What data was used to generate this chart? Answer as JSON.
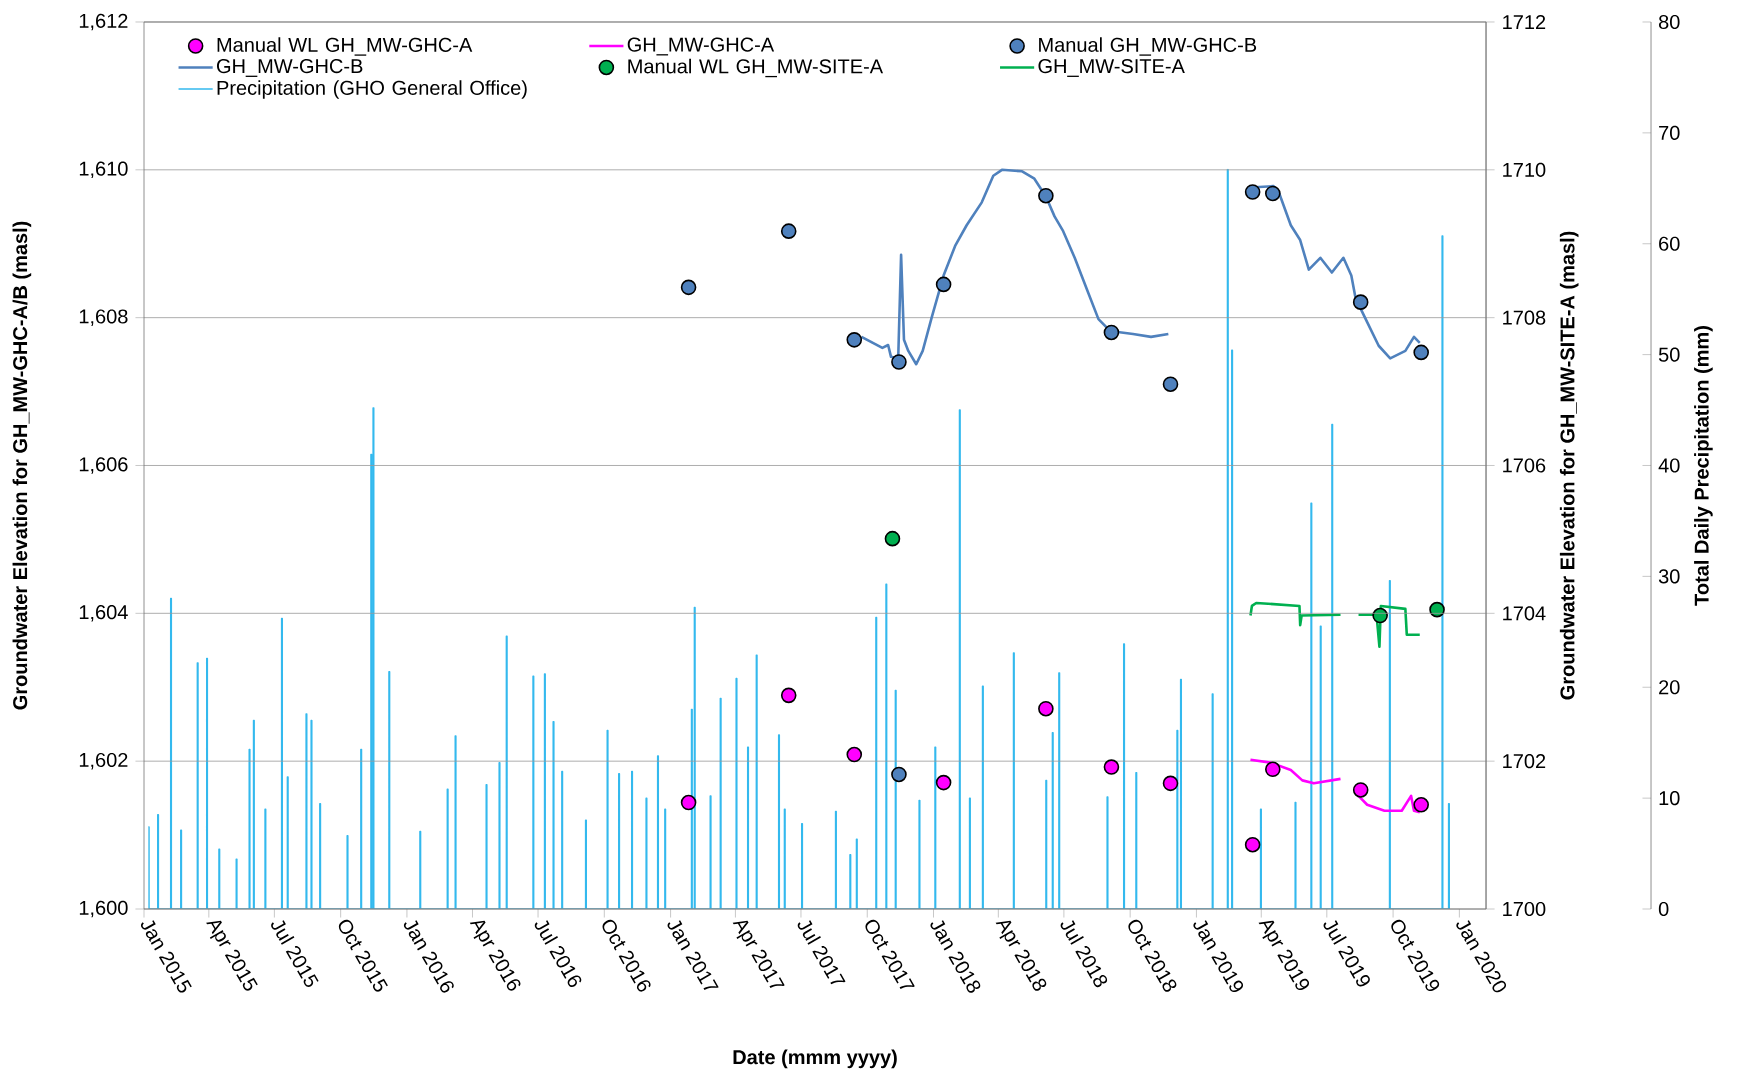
{
  "chart_data": {
    "type": "line",
    "xlabel": "Date (mmm yyyy)",
    "ylabel": "Groundwater Elevation for GH_MW-GHC-A/B (masl)",
    "y2label": "Groundwater Elevation for GH_MW-SITE-A (masl)",
    "y3label": "Total Daily Precipitation (mm)",
    "xlim": [
      "2015-01-01",
      "2020-02-07"
    ],
    "xticks": [
      {
        "value": "2015-01-01",
        "label": "Jan 2015"
      },
      {
        "value": "2015-04-01",
        "label": "Apr 2015"
      },
      {
        "value": "2015-07-01",
        "label": "Jul 2015"
      },
      {
        "value": "2015-10-01",
        "label": "Oct 2015"
      },
      {
        "value": "2016-01-01",
        "label": "Jan 2016"
      },
      {
        "value": "2016-04-01",
        "label": "Apr 2016"
      },
      {
        "value": "2016-07-01",
        "label": "Jul 2016"
      },
      {
        "value": "2016-10-01",
        "label": "Oct 2016"
      },
      {
        "value": "2017-01-01",
        "label": "Jan 2017"
      },
      {
        "value": "2017-04-01",
        "label": "Apr 2017"
      },
      {
        "value": "2017-07-01",
        "label": "Jul 2017"
      },
      {
        "value": "2017-10-01",
        "label": "Oct 2017"
      },
      {
        "value": "2018-01-01",
        "label": "Jan 2018"
      },
      {
        "value": "2018-04-01",
        "label": "Apr 2018"
      },
      {
        "value": "2018-07-01",
        "label": "Jul 2018"
      },
      {
        "value": "2018-10-01",
        "label": "Oct 2018"
      },
      {
        "value": "2019-01-01",
        "label": "Jan 2019"
      },
      {
        "value": "2019-04-01",
        "label": "Apr 2019"
      },
      {
        "value": "2019-07-01",
        "label": "Jul 2019"
      },
      {
        "value": "2019-10-01",
        "label": "Oct 2019"
      },
      {
        "value": "2020-01-01",
        "label": "Jan 2020"
      }
    ],
    "ylim": [
      1600,
      1612
    ],
    "yticks": [
      {
        "value": 1600,
        "label": "1,600"
      },
      {
        "value": 1602,
        "label": "1,602"
      },
      {
        "value": 1604,
        "label": "1,604"
      },
      {
        "value": 1606,
        "label": "1,606"
      },
      {
        "value": 1608,
        "label": "1,608"
      },
      {
        "value": 1610,
        "label": "1,610"
      },
      {
        "value": 1612,
        "label": "1,612"
      }
    ],
    "y2lim": [
      1700,
      1712
    ],
    "y2ticks": [
      1700,
      1702,
      1704,
      1706,
      1708,
      1710,
      1712
    ],
    "y3lim": [
      0,
      80
    ],
    "y3ticks": [
      0,
      10,
      20,
      30,
      40,
      50,
      60,
      70,
      80
    ],
    "grid": "y",
    "legend": "top",
    "series": [
      {
        "name": "Manual WL GH_MW-GHC-A",
        "type": "scatter",
        "marker": "circle",
        "color": "#ff00ff",
        "x": [
          "2017-01-26",
          "2017-06-14",
          "2017-09-13",
          "2018-01-15",
          "2018-06-06",
          "2018-09-05",
          "2018-11-26",
          "2019-03-20",
          "2019-04-17",
          "2019-08-17",
          "2019-11-09"
        ],
        "values": [
          1601.44,
          1602.89,
          1602.09,
          1601.71,
          1602.71,
          1601.92,
          1601.7,
          1600.87,
          1601.89,
          1601.61,
          1601.41
        ]
      },
      {
        "name": "GH_MW-GHC-A",
        "color": "#ff00ff",
        "x": [
          "2019-03-17",
          "2019-04-14",
          "2019-05-12",
          "2019-05-28",
          "2019-06-13",
          "2019-07-20",
          "2019-08-01",
          "2019-08-14",
          "2019-08-26",
          "2019-09-19",
          "2019-10-13",
          "2019-10-26",
          "2019-10-30",
          "2019-11-07"
        ],
        "values": [
          1602.02,
          1601.98,
          1601.88,
          1601.74,
          1601.7,
          1601.76,
          null,
          1601.53,
          1601.41,
          1601.33,
          1601.33,
          1601.53,
          1601.33,
          1601.31
        ]
      },
      {
        "name": "Manual GH_MW-GHC-B",
        "type": "scatter",
        "marker": "circle",
        "color": "#4f81bd",
        "x": [
          "2017-01-26",
          "2017-06-14",
          "2017-09-13",
          "2017-11-14",
          "2017-11-14",
          "2018-01-15",
          "2018-06-06",
          "2018-09-05",
          "2018-11-26",
          "2019-03-20",
          "2019-04-17",
          "2019-08-17",
          "2019-11-09"
        ],
        "values": [
          1608.41,
          1609.17,
          1607.7,
          1607.4,
          1601.82,
          1608.45,
          1609.65,
          1607.8,
          1607.1,
          1609.7,
          1609.68,
          1608.21,
          1607.53
        ]
      },
      {
        "name": "GH_MW-GHC-B",
        "color": "#4f81bd",
        "x": [
          "2017-09-23",
          "2017-10-22",
          "2017-10-30",
          "2017-11-03",
          "2017-11-13",
          "2017-11-17",
          "2017-11-21",
          "2017-11-27",
          "2017-12-08",
          "2017-12-17",
          "2017-12-30",
          "2018-01-15",
          "2018-01-31",
          "2018-02-16",
          "2018-03-09",
          "2018-03-25",
          "2018-04-06",
          "2018-05-04",
          "2018-05-21",
          "2018-06-06",
          "2018-06-18",
          "2018-06-30",
          "2018-07-16",
          "2018-08-02",
          "2018-08-18",
          "2018-09-03",
          "2018-10-05",
          "2018-10-30",
          "2018-11-23",
          "2019-01-15",
          "2019-03-17",
          "2019-04-18",
          "2019-04-26",
          "2019-05-12",
          "2019-05-25",
          "2019-06-06",
          "2019-06-22",
          "2019-07-08",
          "2019-07-24",
          "2019-08-04",
          "2019-08-10",
          "2019-08-26",
          "2019-09-11",
          "2019-09-27",
          "2019-10-18",
          "2019-10-30",
          "2019-11-07"
        ],
        "values": [
          1607.74,
          1607.59,
          1607.63,
          1607.47,
          1607.45,
          1608.85,
          1607.7,
          1607.55,
          1607.37,
          1607.55,
          1608.02,
          1608.57,
          1608.97,
          1609.25,
          1609.56,
          1609.92,
          1610.0,
          1609.98,
          1609.88,
          1609.64,
          1609.37,
          1609.17,
          1608.81,
          1608.38,
          1607.98,
          1607.82,
          1607.78,
          1607.74,
          1607.78,
          null,
          1609.76,
          1609.78,
          1609.68,
          1609.25,
          1609.05,
          1608.65,
          1608.81,
          1608.61,
          1608.81,
          1608.57,
          1608.26,
          1607.94,
          1607.62,
          1607.45,
          1607.55,
          1607.74,
          1607.66
        ]
      },
      {
        "name": "Manual WL GH_MW-SITE-A",
        "type": "scatter",
        "marker": "circle",
        "axis": "y2",
        "color": "#00b050",
        "x": [
          "2017-11-05",
          "2019-09-13",
          "2019-12-01"
        ],
        "values": [
          1705.01,
          1703.97,
          1704.05
        ]
      },
      {
        "name": "GH_MW-SITE-A",
        "axis": "y2",
        "color": "#00b050",
        "x": [
          "2019-03-17",
          "2019-03-19",
          "2019-03-25",
          "2019-05-24",
          "2019-05-25",
          "2019-05-27",
          "2019-07-20",
          "2019-08-01",
          "2019-08-14",
          "2019-09-08",
          "2019-09-12",
          "2019-09-14",
          "2019-10-18",
          "2019-10-20",
          "2019-11-07"
        ],
        "values": [
          1703.97,
          1704.1,
          1704.14,
          1704.1,
          1703.84,
          1703.97,
          1703.98,
          null,
          1703.98,
          1703.98,
          1703.55,
          1704.1,
          1704.06,
          1703.71,
          1703.71
        ]
      },
      {
        "name": "Precipitation (GHO General Office)",
        "type": "step",
        "axis": "y3",
        "color": "#33b9ee",
        "x": [
          "2015-01-07",
          "2015-01-08",
          "2015-01-20",
          "2015-01-21",
          "2015-02-07",
          "2015-02-08",
          "2015-02-21",
          "2015-02-22",
          "2015-03-16",
          "2015-03-17",
          "2015-03-29",
          "2015-03-30",
          "2015-04-15",
          "2015-04-16",
          "2015-05-09",
          "2015-05-10",
          "2015-05-27",
          "2015-05-28",
          "2015-06-02",
          "2015-06-03",
          "2015-06-18",
          "2015-06-19",
          "2015-07-11",
          "2015-07-12",
          "2015-07-19",
          "2015-07-20",
          "2015-08-14",
          "2015-08-15",
          "2015-08-21",
          "2015-08-22",
          "2015-09-02",
          "2015-09-03",
          "2015-10-10",
          "2015-10-11",
          "2015-10-29",
          "2015-10-30",
          "2015-11-12",
          "2015-11-13",
          "2015-11-15",
          "2015-11-16",
          "2015-12-07",
          "2015-12-08",
          "2016-01-19",
          "2016-01-20",
          "2016-02-26",
          "2016-02-27",
          "2016-03-08",
          "2016-03-09",
          "2016-04-20",
          "2016-04-21",
          "2016-05-08",
          "2016-05-09",
          "2016-05-18",
          "2016-05-19",
          "2016-06-24",
          "2016-06-25",
          "2016-07-10",
          "2016-07-11",
          "2016-07-22",
          "2016-07-23",
          "2016-08-03",
          "2016-08-04",
          "2016-09-05",
          "2016-09-06",
          "2016-10-05",
          "2016-10-06",
          "2016-10-21",
          "2016-10-22",
          "2016-11-08",
          "2016-11-09",
          "2016-11-28",
          "2016-11-29",
          "2016-12-14",
          "2016-12-15",
          "2016-12-24",
          "2016-12-25",
          "2017-01-30",
          "2017-01-31",
          "2017-02-03",
          "2017-02-04",
          "2017-02-25",
          "2017-02-26",
          "2017-03-11",
          "2017-03-12",
          "2017-04-02",
          "2017-04-03",
          "2017-04-18",
          "2017-04-19",
          "2017-04-30",
          "2017-05-01",
          "2017-05-31",
          "2017-06-01",
          "2017-06-08",
          "2017-06-09",
          "2017-07-02",
          "2017-07-03",
          "2017-08-18",
          "2017-08-19",
          "2017-09-07",
          "2017-09-08",
          "2017-09-16",
          "2017-09-17",
          "2017-10-13",
          "2017-10-14",
          "2017-10-27",
          "2017-10-28",
          "2017-11-09",
          "2017-11-10",
          "2017-12-12",
          "2017-12-13",
          "2018-01-03",
          "2018-01-04",
          "2018-02-06",
          "2018-02-07",
          "2018-02-20",
          "2018-02-21",
          "2018-03-10",
          "2018-03-11",
          "2018-04-22",
          "2018-04-23",
          "2018-06-06",
          "2018-06-07",
          "2018-06-15",
          "2018-06-16",
          "2018-06-24",
          "2018-06-25",
          "2018-08-30",
          "2018-08-31",
          "2018-09-22",
          "2018-09-23",
          "2018-10-09",
          "2018-10-10",
          "2018-12-05",
          "2018-12-06",
          "2018-12-10",
          "2018-12-11",
          "2019-01-23",
          "2019-01-24",
          "2019-02-13",
          "2019-02-14",
          "2019-02-19",
          "2019-02-20",
          "2019-03-31",
          "2019-04-01",
          "2019-05-18",
          "2019-05-19",
          "2019-06-09",
          "2019-06-10",
          "2019-06-22",
          "2019-06-23",
          "2019-07-08",
          "2019-07-09",
          "2019-09-26",
          "2019-09-27",
          "2019-12-08",
          "2019-12-09",
          "2019-12-17",
          "2019-12-18"
        ],
        "values": [
          7.4,
          0,
          8.5,
          0,
          28.0,
          0,
          7.1,
          0,
          22.2,
          0,
          22.6,
          0,
          5.4,
          0,
          4.5,
          0,
          14.4,
          0,
          17.0,
          0,
          9.0,
          0,
          26.2,
          0,
          11.9,
          0,
          17.6,
          0,
          17.0,
          0,
          9.5,
          0,
          6.6,
          0,
          14.4,
          0,
          41.0,
          0,
          45.2,
          0,
          21.4,
          0,
          7.0,
          0,
          10.8,
          0,
          15.6,
          0,
          11.2,
          0,
          13.2,
          0,
          24.6,
          0,
          21.0,
          0,
          21.2,
          0,
          16.9,
          0,
          12.4,
          0,
          8.0,
          0,
          16.1,
          0,
          12.2,
          0,
          12.4,
          0,
          10.0,
          0,
          13.8,
          0,
          9.0,
          0,
          18.0,
          0,
          27.2,
          0,
          10.2,
          0,
          19.0,
          0,
          20.8,
          0,
          14.6,
          0,
          22.9,
          0,
          15.7,
          0,
          9.0,
          0,
          7.7,
          0,
          8.8,
          0,
          4.9,
          0,
          6.3,
          0,
          26.3,
          0,
          29.3,
          0,
          19.7,
          0,
          9.8,
          0,
          14.6,
          0,
          45.0,
          0,
          10.0,
          0,
          20.1,
          0,
          23.1,
          0,
          11.6,
          0,
          15.9,
          0,
          21.3,
          0,
          10.1,
          0,
          23.9,
          0,
          12.3,
          0,
          16.1,
          0,
          20.7,
          0,
          19.4,
          0,
          66.7,
          0,
          50.4,
          0,
          9.0,
          0,
          9.6,
          0,
          36.6,
          0,
          25.5,
          0,
          43.7,
          0,
          29.6,
          0,
          60.7,
          0,
          9.5,
          0
        ]
      }
    ]
  }
}
